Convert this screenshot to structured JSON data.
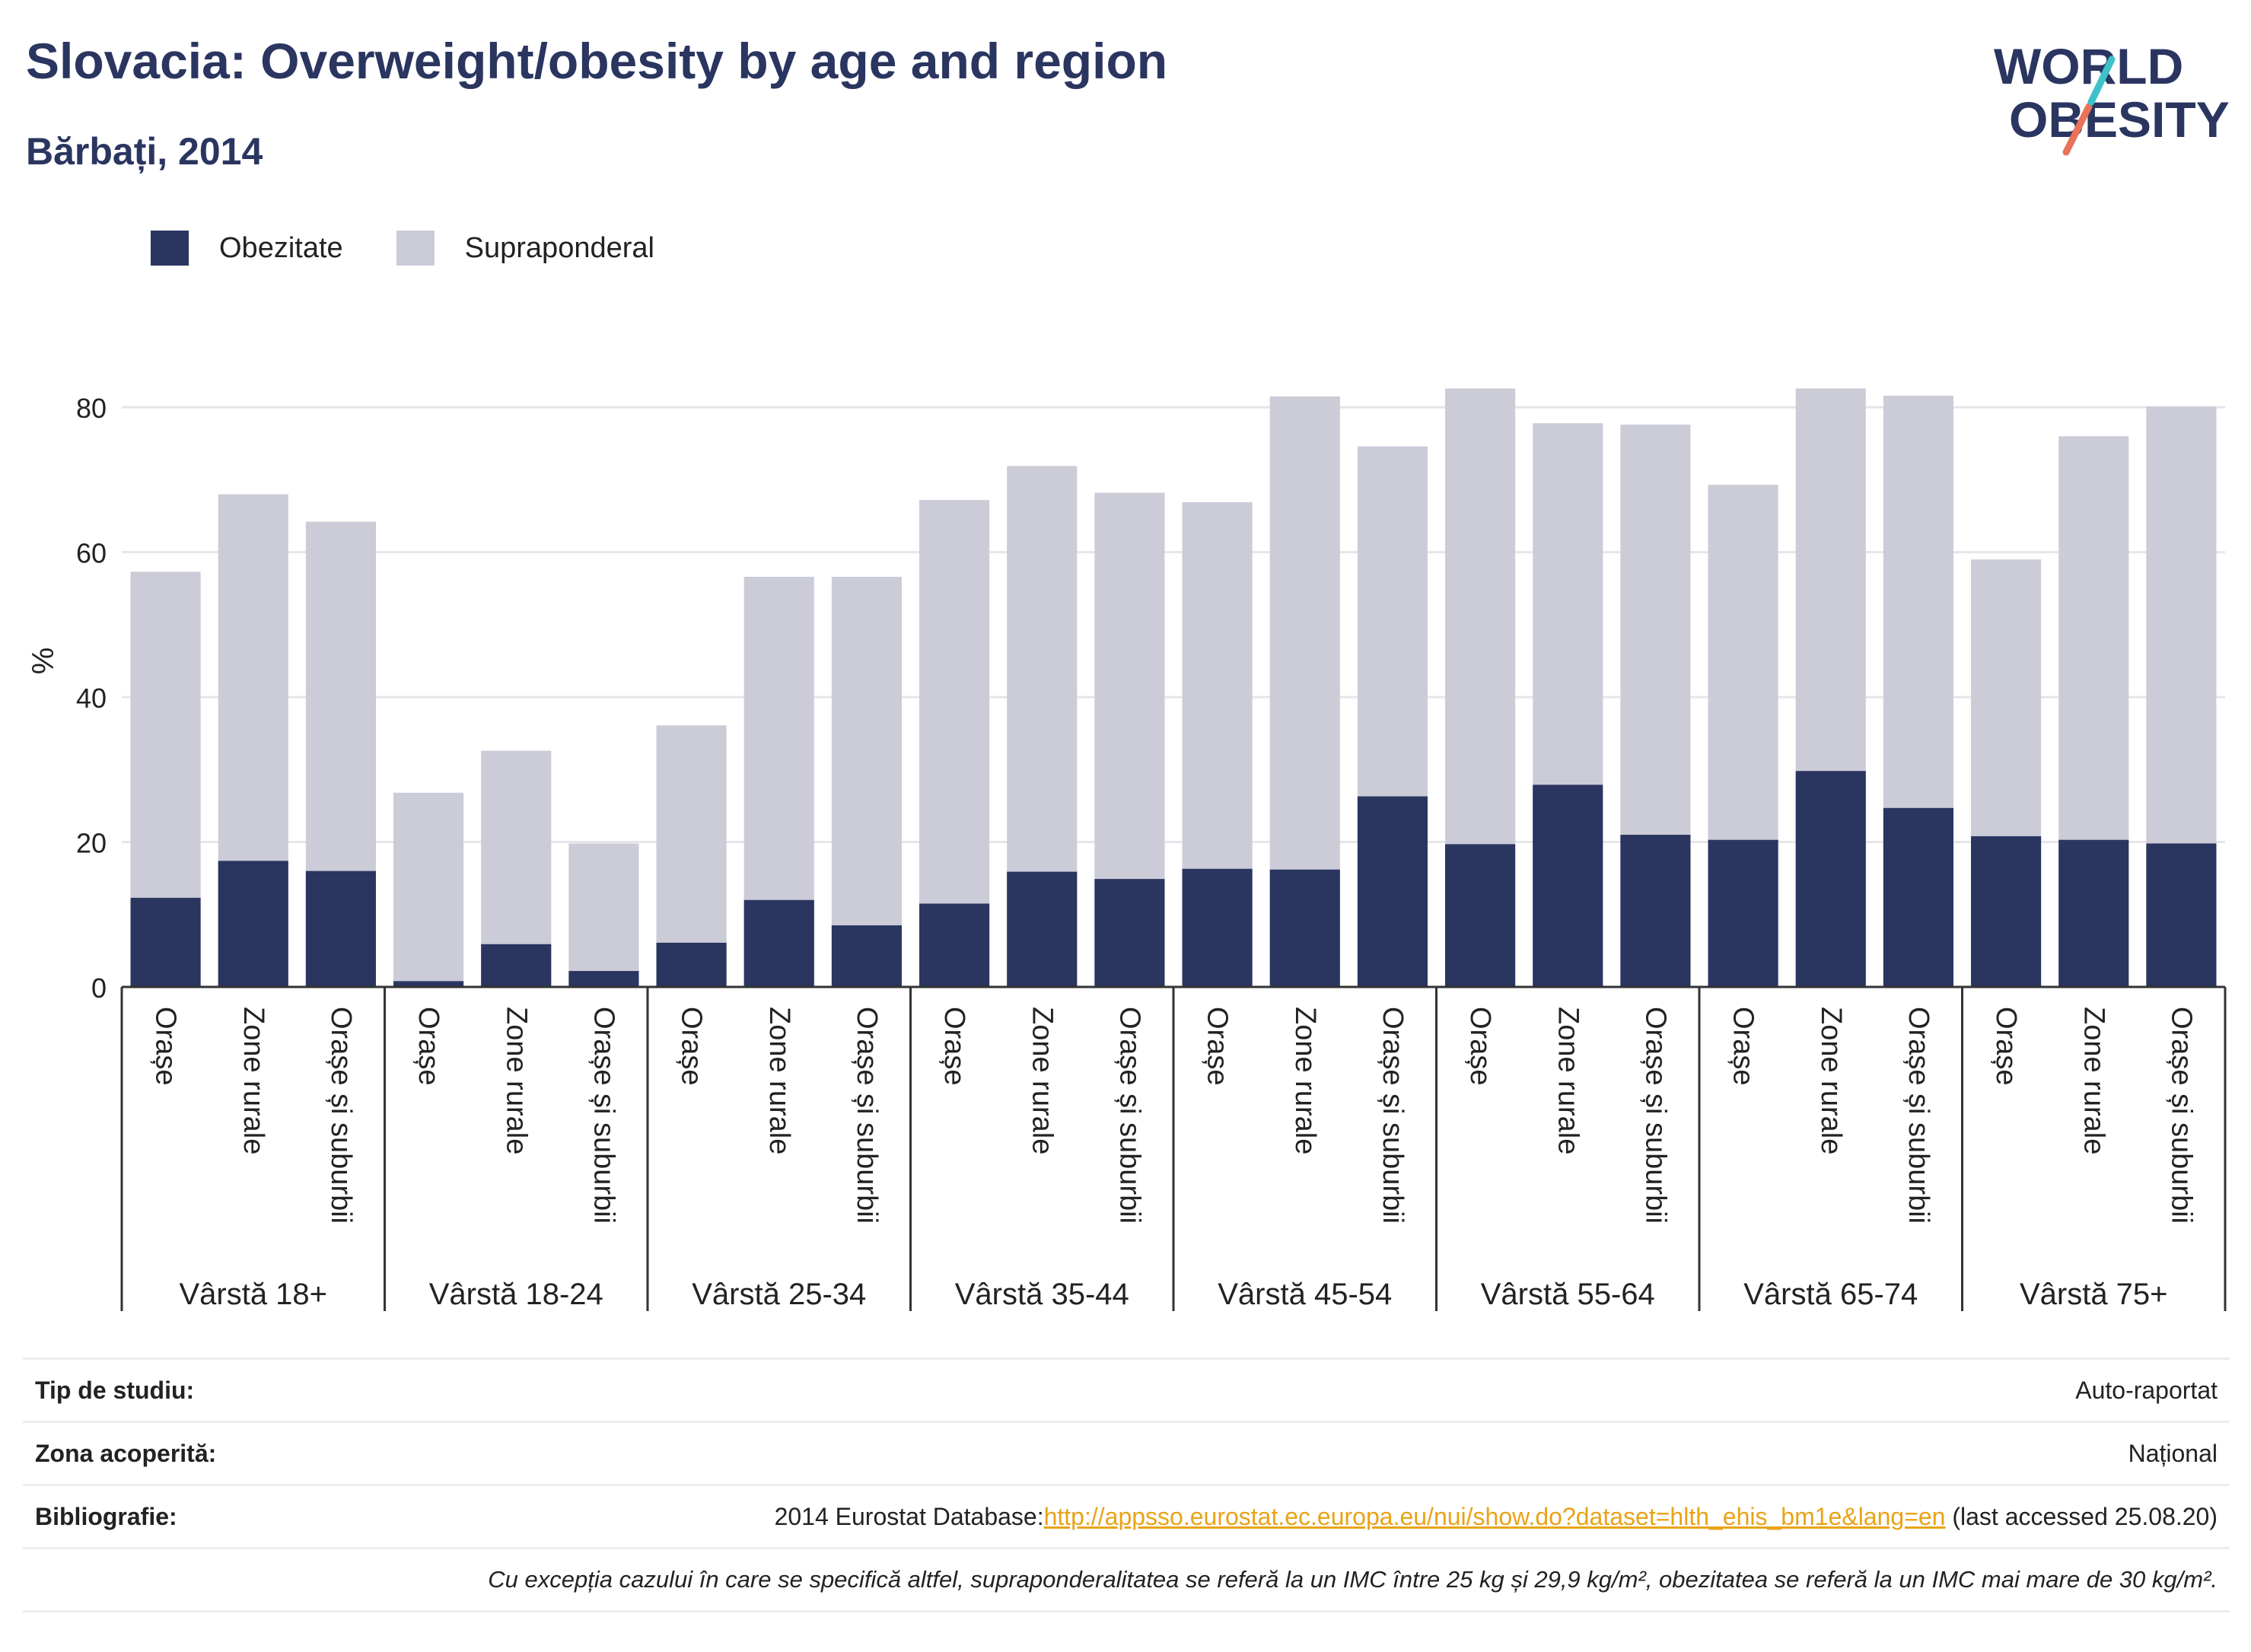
{
  "header": {
    "title": "Slovacia: Overweight/obesity by age and region",
    "subtitle": "Bărbați, 2014"
  },
  "logo": {
    "line1": "WORLD",
    "line2": "OBESITY"
  },
  "colors": {
    "obesity": "#2a3560",
    "overweight": "#cbccd8",
    "axis": "#333333",
    "grid": "#e6e6ea",
    "link": "#e8a317"
  },
  "legend": {
    "items": [
      "Obezitate",
      "Supraponderal"
    ]
  },
  "chart_data": {
    "type": "bar",
    "stacked": true,
    "ylabel": "%",
    "ylim": [
      0,
      90
    ],
    "yticks": [
      0,
      20,
      40,
      60,
      80
    ],
    "grid": true,
    "legend_position": "top-left",
    "groups": [
      "Vârstă 18+",
      "Vârstă 18-24",
      "Vârstă 25-34",
      "Vârstă 35-44",
      "Vârstă 45-54",
      "Vârstă 55-64",
      "Vârstă 65-74",
      "Vârstă 75+"
    ],
    "categories": [
      "Orașe",
      "Zone rurale",
      "Orașe și suburbii"
    ],
    "series": [
      {
        "name": "Obezitate",
        "values": [
          [
            12.3,
            17.4,
            16.0
          ],
          [
            0.8,
            5.9,
            2.2
          ],
          [
            6.1,
            12.0,
            8.5
          ],
          [
            11.5,
            15.9,
            14.9
          ],
          [
            16.3,
            16.2,
            26.3
          ],
          [
            19.7,
            27.9,
            21.0
          ],
          [
            20.3,
            29.8,
            24.7
          ],
          [
            20.8,
            20.3,
            19.8
          ]
        ]
      },
      {
        "name": "Supraponderal",
        "values": [
          [
            57.3,
            68.0,
            64.2
          ],
          [
            26.8,
            32.6,
            19.8
          ],
          [
            36.1,
            56.6,
            56.6
          ],
          [
            67.2,
            71.9,
            68.2
          ],
          [
            66.9,
            81.5,
            74.6
          ],
          [
            82.6,
            77.8,
            77.6
          ],
          [
            69.3,
            82.6,
            81.6
          ],
          [
            59.0,
            76.0,
            80.1
          ]
        ]
      }
    ]
  },
  "info": {
    "rows": [
      {
        "key": "Tip de studiu:",
        "value": "Auto-raportat"
      },
      {
        "key": "Zona acoperită:",
        "value": "Național"
      }
    ],
    "bibliography": {
      "key": "Bibliografie:",
      "prefix": "2014 Eurostat Database:",
      "link": "http://appsso.eurostat.ec.europa.eu/nui/show.do?dataset=hlth_ehis_bm1e&lang=en",
      "suffix": " (last accessed 25.08.20)"
    },
    "note": "Cu excepția cazului în care se specifică altfel, supraponderalitatea se referă la un IMC între 25 kg și 29,9 kg/m², obezitatea se referă la un IMC mai mare de 30 kg/m²."
  }
}
